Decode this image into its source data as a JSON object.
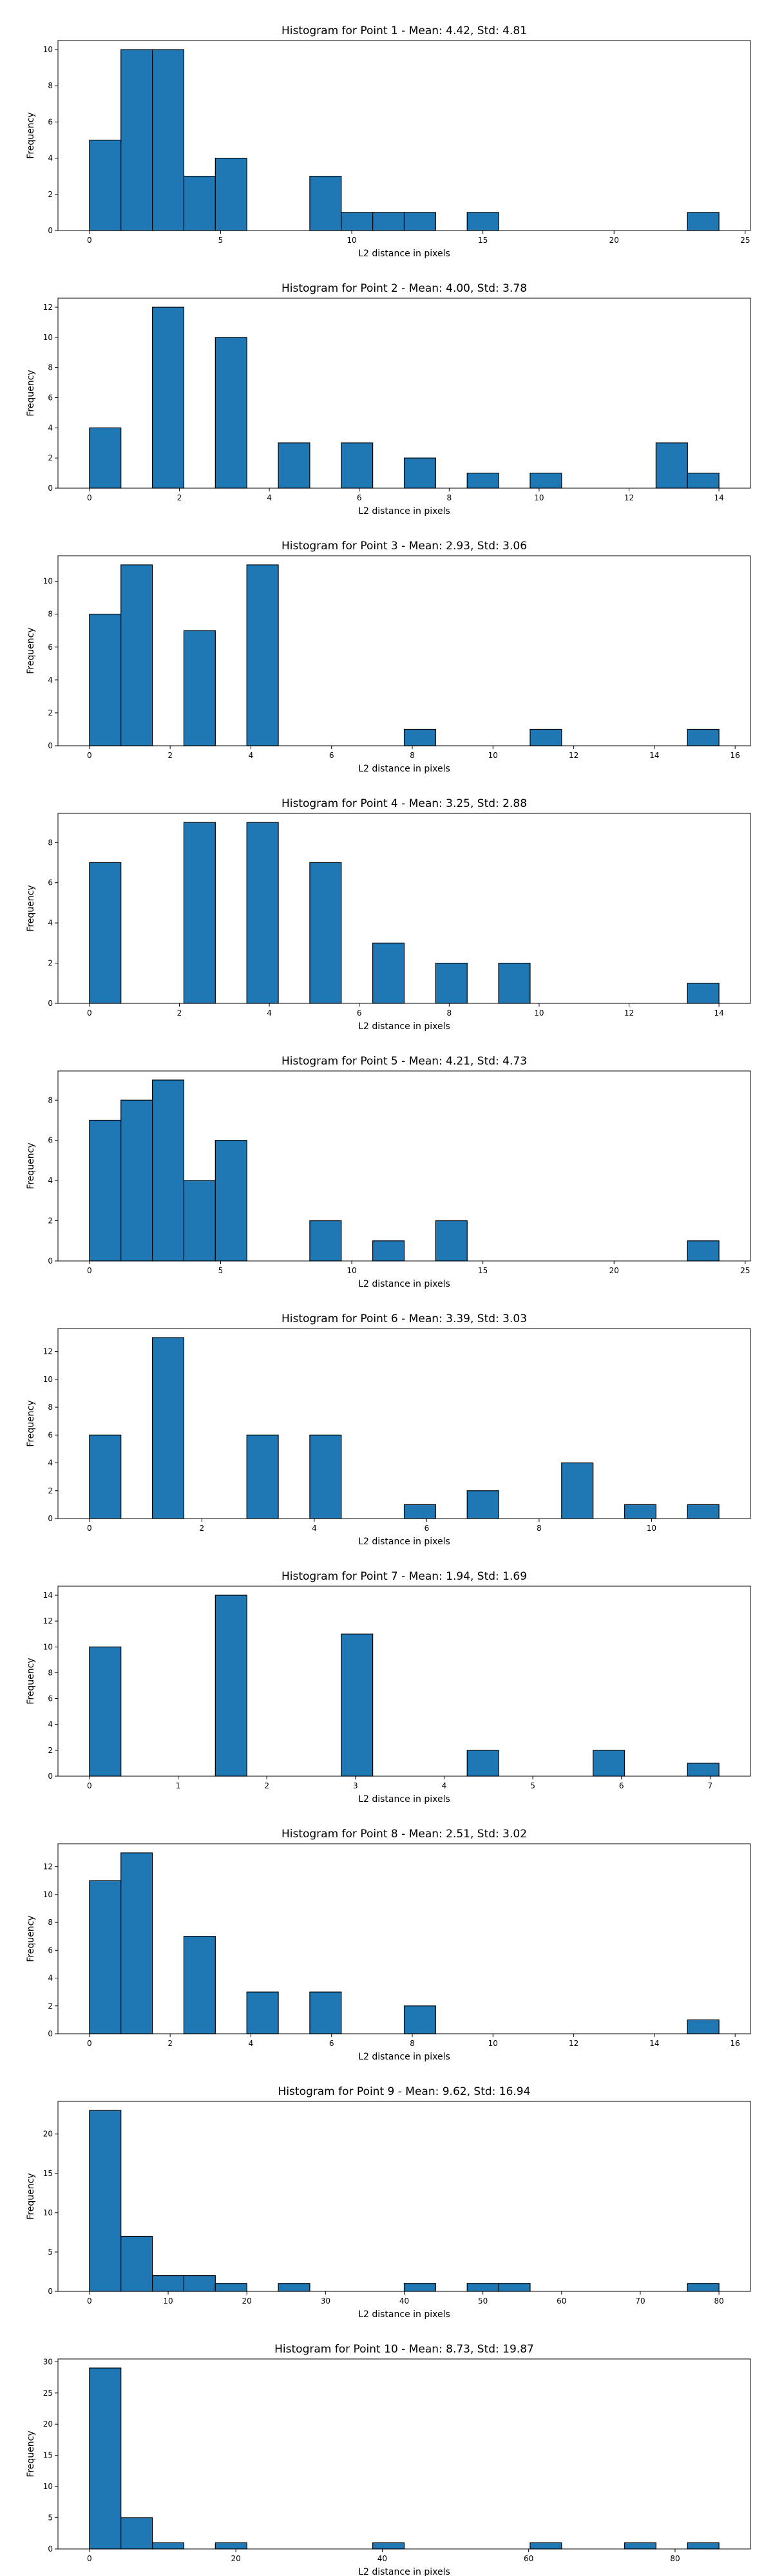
{
  "colors": {
    "bar_fill": "#1f77b4",
    "bar_edge": "#000000",
    "background": "#ffffff"
  },
  "chart_data": [
    {
      "type": "bar",
      "title": "Histogram for Point 1 - Mean: 4.42, Std: 4.81",
      "xlabel": "L2 distance in pixels",
      "ylabel": "Frequency",
      "xlim": [
        -1.2,
        25.2
      ],
      "ylim": [
        0,
        10.5
      ],
      "xticks": [
        0,
        5,
        10,
        15,
        20,
        25
      ],
      "yticks": [
        0,
        2,
        4,
        6,
        8,
        10
      ],
      "bin_start": 0,
      "bin_width": 1.2,
      "grid": false,
      "values": [
        5,
        10,
        10,
        3,
        4,
        0,
        0,
        3,
        1,
        1,
        1,
        0,
        1,
        0,
        0,
        0,
        0,
        0,
        0,
        1
      ]
    },
    {
      "type": "bar",
      "title": "Histogram for Point 2 - Mean: 4.00, Std: 3.78",
      "xlabel": "L2 distance in pixels",
      "ylabel": "Frequency",
      "xlim": [
        -0.7,
        14.7
      ],
      "ylim": [
        0,
        12.6
      ],
      "xticks": [
        0,
        2,
        4,
        6,
        8,
        10,
        12,
        14
      ],
      "yticks": [
        0,
        2,
        4,
        6,
        8,
        10,
        12
      ],
      "bin_start": 0,
      "bin_width": 0.7,
      "grid": false,
      "values": [
        4,
        0,
        12,
        0,
        10,
        0,
        3,
        0,
        3,
        0,
        2,
        0,
        1,
        0,
        1,
        0,
        0,
        0,
        3,
        1
      ]
    },
    {
      "type": "bar",
      "title": "Histogram for Point 3 - Mean: 2.93, Std: 3.06",
      "xlabel": "L2 distance in pixels",
      "ylabel": "Frequency",
      "xlim": [
        -0.78,
        16.38
      ],
      "ylim": [
        0,
        11.55
      ],
      "xticks": [
        0,
        2,
        4,
        6,
        8,
        10,
        12,
        14,
        16
      ],
      "yticks": [
        0,
        2,
        4,
        6,
        8,
        10
      ],
      "bin_start": 0,
      "bin_width": 0.78,
      "grid": false,
      "values": [
        8,
        11,
        0,
        7,
        0,
        11,
        0,
        0,
        0,
        0,
        1,
        0,
        0,
        0,
        1,
        0,
        0,
        0,
        0,
        1
      ]
    },
    {
      "type": "bar",
      "title": "Histogram for Point 4 - Mean: 3.25, Std: 2.88",
      "xlabel": "L2 distance in pixels",
      "ylabel": "Frequency",
      "xlim": [
        -0.7,
        14.7
      ],
      "ylim": [
        0,
        9.45
      ],
      "xticks": [
        0,
        2,
        4,
        6,
        8,
        10,
        12,
        14
      ],
      "yticks": [
        0,
        2,
        4,
        6,
        8
      ],
      "bin_start": 0,
      "bin_width": 0.7,
      "grid": false,
      "values": [
        7,
        0,
        0,
        9,
        0,
        9,
        0,
        7,
        0,
        3,
        0,
        2,
        0,
        2,
        0,
        0,
        0,
        0,
        0,
        1
      ]
    },
    {
      "type": "bar",
      "title": "Histogram for Point 5 - Mean: 4.21, Std: 4.73",
      "xlabel": "L2 distance in pixels",
      "ylabel": "Frequency",
      "xlim": [
        -1.2,
        25.2
      ],
      "ylim": [
        0,
        9.45
      ],
      "xticks": [
        0,
        5,
        10,
        15,
        20,
        25
      ],
      "yticks": [
        0,
        2,
        4,
        6,
        8
      ],
      "bin_start": 0,
      "bin_width": 1.2,
      "grid": false,
      "values": [
        7,
        8,
        9,
        4,
        6,
        0,
        0,
        2,
        0,
        1,
        0,
        2,
        0,
        0,
        0,
        0,
        0,
        0,
        0,
        1
      ]
    },
    {
      "type": "bar",
      "title": "Histogram for Point 6 - Mean: 3.39, Std: 3.03",
      "xlabel": "L2 distance in pixels",
      "ylabel": "Frequency",
      "xlim": [
        -0.56,
        11.76
      ],
      "ylim": [
        0,
        13.65
      ],
      "xticks": [
        0,
        2,
        4,
        6,
        8,
        10
      ],
      "yticks": [
        0,
        2,
        4,
        6,
        8,
        10,
        12
      ],
      "bin_start": 0,
      "bin_width": 0.56,
      "grid": false,
      "values": [
        6,
        0,
        13,
        0,
        0,
        6,
        0,
        6,
        0,
        0,
        1,
        0,
        2,
        0,
        0,
        4,
        0,
        1,
        0,
        1
      ]
    },
    {
      "type": "bar",
      "title": "Histogram for Point 7 - Mean: 1.94, Std: 1.69",
      "xlabel": "L2 distance in pixels",
      "ylabel": "Frequency",
      "xlim": [
        -0.355,
        7.455
      ],
      "ylim": [
        0,
        14.7
      ],
      "xticks": [
        0,
        1,
        2,
        3,
        4,
        5,
        6,
        7
      ],
      "yticks": [
        0,
        2,
        4,
        6,
        8,
        10,
        12,
        14
      ],
      "bin_start": 0,
      "bin_width": 0.355,
      "grid": false,
      "values": [
        10,
        0,
        0,
        0,
        14,
        0,
        0,
        0,
        11,
        0,
        0,
        0,
        2,
        0,
        0,
        0,
        2,
        0,
        0,
        1
      ]
    },
    {
      "type": "bar",
      "title": "Histogram for Point 8 - Mean: 2.51, Std: 3.02",
      "xlabel": "L2 distance in pixels",
      "ylabel": "Frequency",
      "xlim": [
        -0.78,
        16.38
      ],
      "ylim": [
        0,
        13.65
      ],
      "xticks": [
        0,
        2,
        4,
        6,
        8,
        10,
        12,
        14,
        16
      ],
      "yticks": [
        0,
        2,
        4,
        6,
        8,
        10,
        12
      ],
      "bin_start": 0,
      "bin_width": 0.78,
      "grid": false,
      "values": [
        11,
        13,
        0,
        7,
        0,
        3,
        0,
        3,
        0,
        0,
        2,
        0,
        0,
        0,
        0,
        0,
        0,
        0,
        0,
        1
      ]
    },
    {
      "type": "bar",
      "title": "Histogram for Point 9 - Mean: 9.62, Std: 16.94",
      "xlabel": "L2 distance in pixels",
      "ylabel": "Frequency",
      "xlim": [
        -4,
        84
      ],
      "ylim": [
        0,
        24.15
      ],
      "xticks": [
        0,
        10,
        20,
        30,
        40,
        50,
        60,
        70,
        80
      ],
      "yticks": [
        0,
        5,
        10,
        15,
        20
      ],
      "bin_start": 0,
      "bin_width": 4,
      "grid": false,
      "values": [
        23,
        7,
        2,
        2,
        1,
        0,
        1,
        0,
        0,
        0,
        1,
        0,
        1,
        1,
        0,
        0,
        0,
        0,
        0,
        1
      ]
    },
    {
      "type": "bar",
      "title": "Histogram for Point 10 - Mean: 8.73, Std: 19.87",
      "xlabel": "L2 distance in pixels",
      "ylabel": "Frequency",
      "xlim": [
        -4.3,
        90.3
      ],
      "ylim": [
        0,
        30.45
      ],
      "xticks": [
        0,
        20,
        40,
        60,
        80
      ],
      "yticks": [
        0,
        5,
        10,
        15,
        20,
        25,
        30
      ],
      "bin_start": 0,
      "bin_width": 4.3,
      "grid": false,
      "values": [
        29,
        5,
        1,
        0,
        1,
        0,
        0,
        0,
        0,
        1,
        0,
        0,
        0,
        0,
        1,
        0,
        0,
        1,
        0,
        1
      ]
    }
  ]
}
